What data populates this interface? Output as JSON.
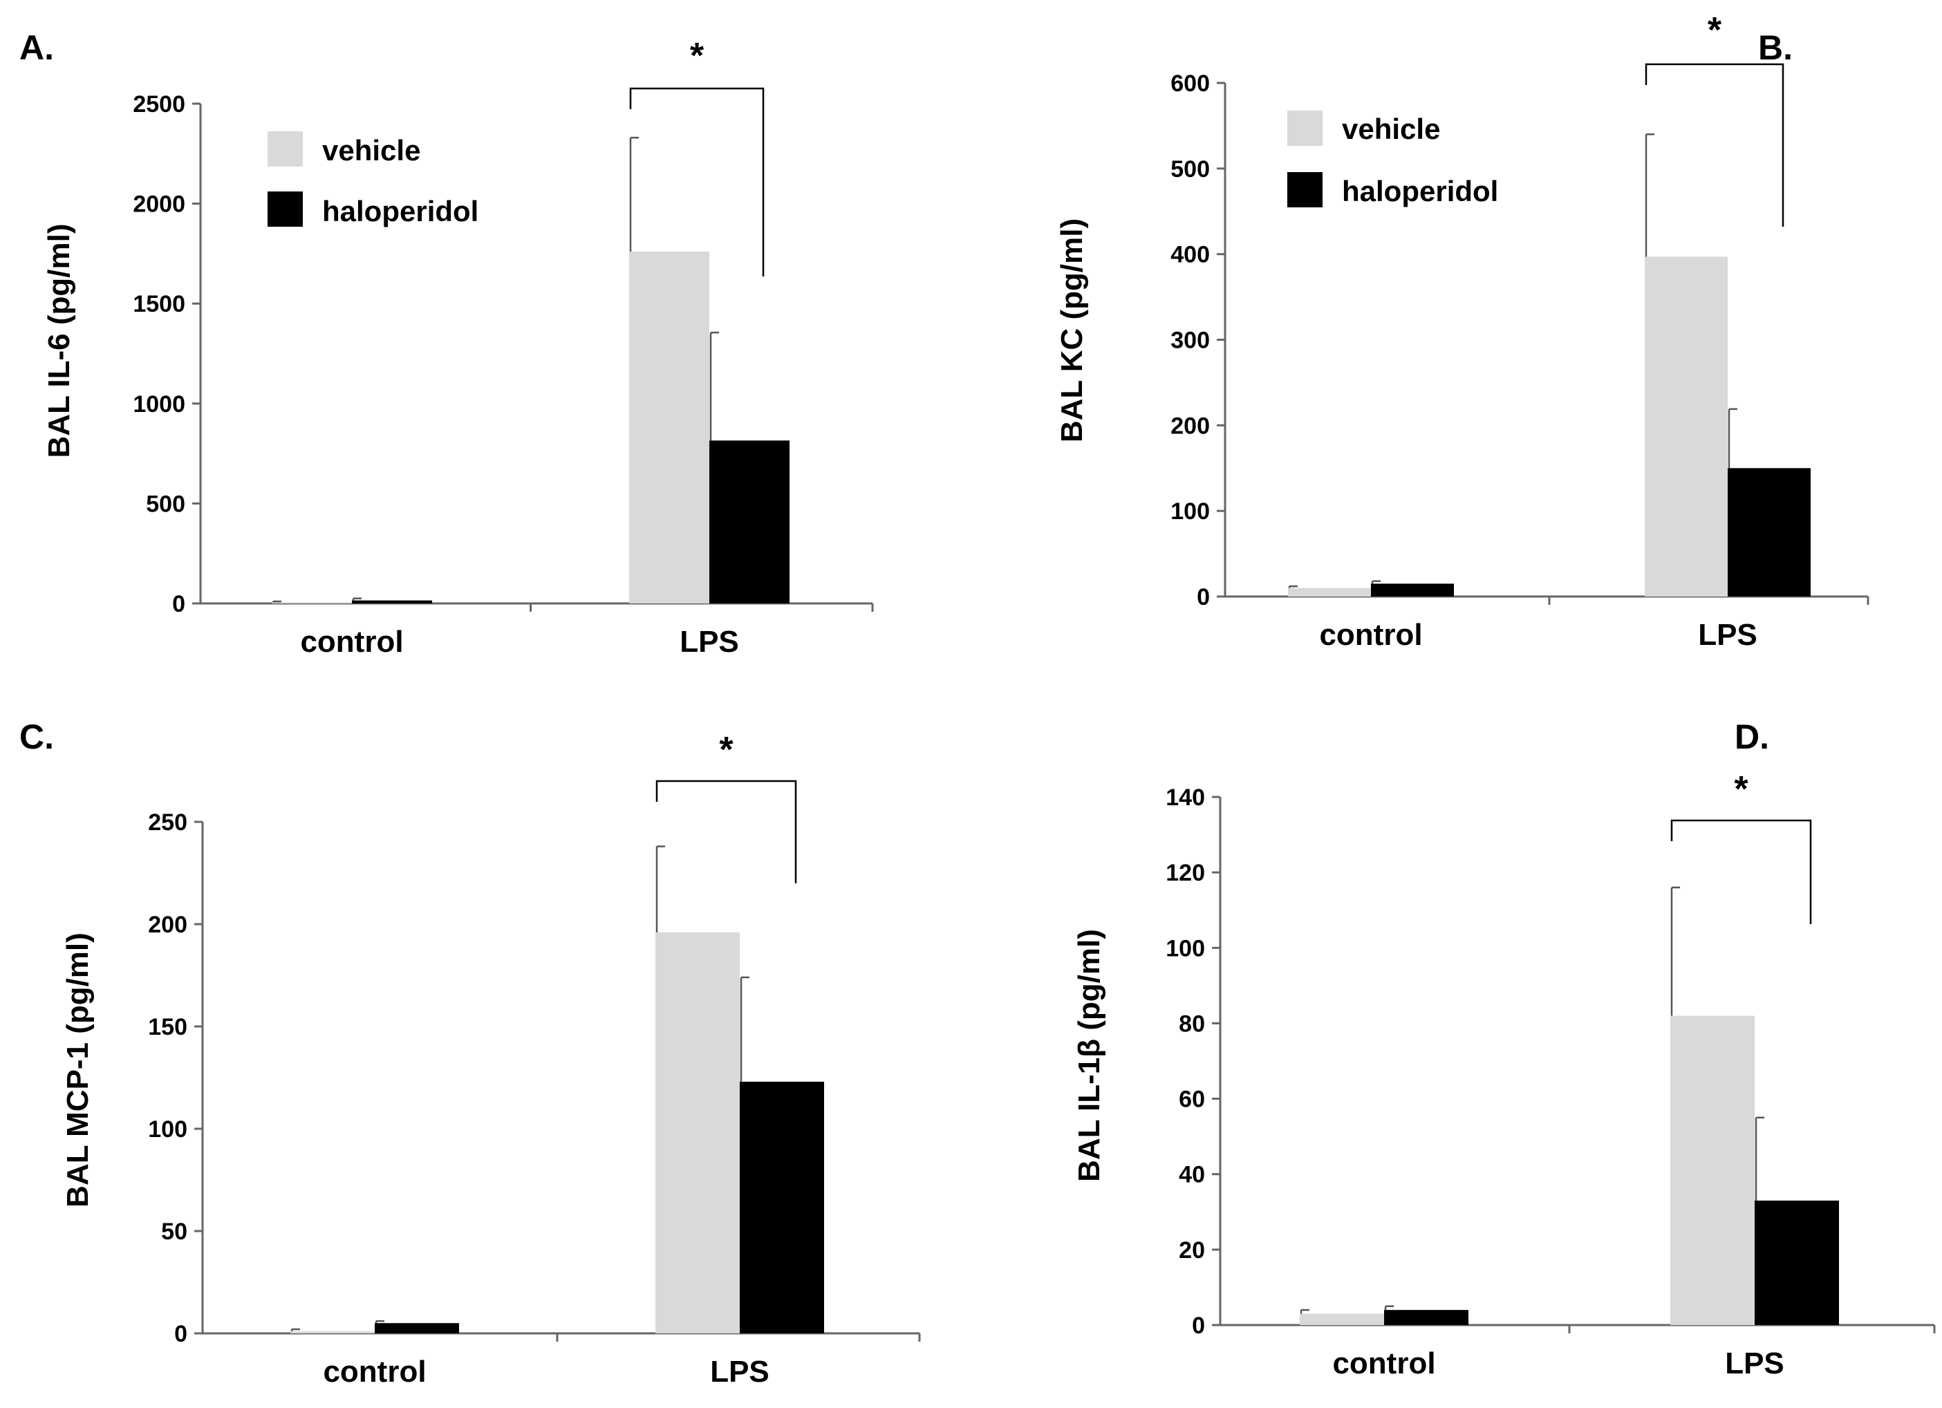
{
  "figure": {
    "legend": {
      "entries": [
        {
          "label": "vehicle",
          "color": "#d9d9d9"
        },
        {
          "label": "haloperidol",
          "color": "#000000"
        }
      ]
    }
  },
  "chart_data": [
    {
      "panel": "A.",
      "type": "bar",
      "categories": [
        "control",
        "LPS"
      ],
      "series": [
        {
          "name": "vehicle",
          "color": "#d9d9d9",
          "values": [
            5,
            1760
          ],
          "errors": [
            5,
            570
          ]
        },
        {
          "name": "haloperidol",
          "color": "#000000",
          "values": [
            15,
            815
          ],
          "errors": [
            10,
            540
          ]
        }
      ],
      "ylabel": "BAL IL-6 (pg/ml)",
      "ylim": [
        0,
        2500
      ],
      "yticks": [
        0,
        500,
        1000,
        1500,
        2000,
        2500
      ],
      "significance": {
        "category": "LPS",
        "label": "*"
      },
      "legend": "top-left"
    },
    {
      "panel": "B.",
      "type": "bar",
      "categories": [
        "control",
        "LPS"
      ],
      "series": [
        {
          "name": "vehicle",
          "color": "#d9d9d9",
          "values": [
            10,
            397
          ],
          "errors": [
            2,
            143
          ]
        },
        {
          "name": "haloperidol",
          "color": "#000000",
          "values": [
            15,
            150
          ],
          "errors": [
            3,
            69
          ]
        }
      ],
      "ylabel": "BAL KC (pg/ml)",
      "ylim": [
        0,
        600
      ],
      "yticks": [
        0,
        100,
        200,
        300,
        400,
        500,
        600
      ],
      "significance": {
        "category": "LPS",
        "label": "*"
      },
      "legend": "top-left"
    },
    {
      "panel": "C.",
      "type": "bar",
      "categories": [
        "control",
        "LPS"
      ],
      "series": [
        {
          "name": "vehicle",
          "color": "#d9d9d9",
          "values": [
            1,
            196
          ],
          "errors": [
            1,
            42
          ]
        },
        {
          "name": "haloperidol",
          "color": "#000000",
          "values": [
            5,
            123
          ],
          "errors": [
            1,
            51
          ]
        }
      ],
      "ylabel": "BAL MCP-1 (pg/ml)",
      "ylim": [
        0,
        250
      ],
      "yticks": [
        0,
        50,
        100,
        150,
        200,
        250
      ],
      "significance": {
        "category": "LPS",
        "label": "*"
      }
    },
    {
      "panel": "D.",
      "type": "bar",
      "categories": [
        "control",
        "LPS"
      ],
      "series": [
        {
          "name": "vehicle",
          "color": "#d9d9d9",
          "values": [
            3,
            82
          ],
          "errors": [
            1,
            34
          ]
        },
        {
          "name": "haloperidol",
          "color": "#000000",
          "values": [
            4,
            33
          ],
          "errors": [
            1,
            22
          ]
        }
      ],
      "ylabel": "BAL IL-1β (pg/ml)",
      "ylim": [
        0,
        140
      ],
      "yticks": [
        0,
        20,
        40,
        60,
        80,
        100,
        120,
        140
      ],
      "significance": {
        "category": "LPS",
        "label": "*"
      }
    }
  ]
}
